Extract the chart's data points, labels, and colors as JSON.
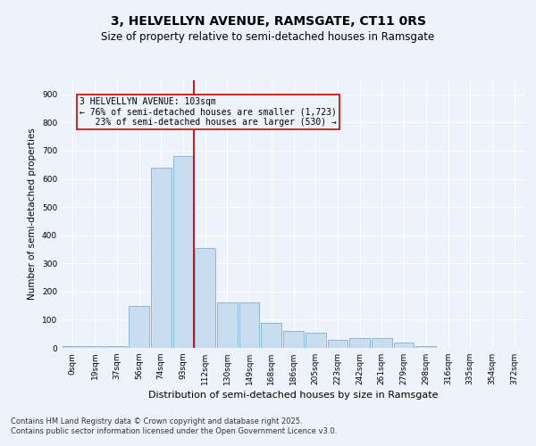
{
  "title1": "3, HELVELLYN AVENUE, RAMSGATE, CT11 0RS",
  "title2": "Size of property relative to semi-detached houses in Ramsgate",
  "xlabel": "Distribution of semi-detached houses by size in Ramsgate",
  "ylabel": "Number of semi-detached properties",
  "bin_labels": [
    "0sqm",
    "19sqm",
    "37sqm",
    "56sqm",
    "74sqm",
    "93sqm",
    "112sqm",
    "130sqm",
    "149sqm",
    "168sqm",
    "186sqm",
    "205sqm",
    "223sqm",
    "242sqm",
    "261sqm",
    "279sqm",
    "298sqm",
    "316sqm",
    "335sqm",
    "354sqm",
    "372sqm"
  ],
  "bar_heights": [
    5,
    5,
    5,
    150,
    640,
    680,
    355,
    160,
    160,
    90,
    60,
    55,
    30,
    35,
    35,
    20,
    5,
    0,
    0,
    0,
    0
  ],
  "bar_color": "#c9ddf0",
  "bar_edge_color": "#7bafd4",
  "vline_idx": 6,
  "vline_color": "#cc0000",
  "annotation_text": "3 HELVELLYN AVENUE: 103sqm\n← 76% of semi-detached houses are smaller (1,723)\n   23% of semi-detached houses are larger (530) →",
  "annotation_box_color": "#cc0000",
  "ylim": [
    0,
    950
  ],
  "yticks": [
    0,
    100,
    200,
    300,
    400,
    500,
    600,
    700,
    800,
    900
  ],
  "footnote": "Contains HM Land Registry data © Crown copyright and database right 2025.\nContains public sector information licensed under the Open Government Licence v3.0.",
  "background_color": "#eef2fb",
  "grid_color": "#ffffff",
  "title1_fontsize": 10,
  "title2_fontsize": 8.5,
  "ylabel_fontsize": 7.5,
  "xlabel_fontsize": 8,
  "annot_fontsize": 7,
  "tick_fontsize": 6.5,
  "footnote_fontsize": 6
}
